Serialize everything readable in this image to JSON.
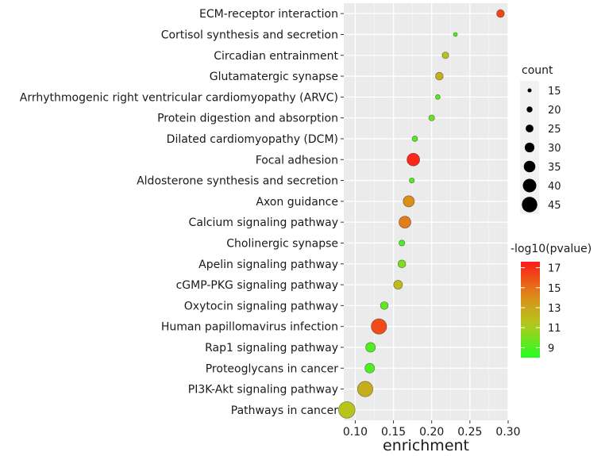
{
  "chart_data": {
    "type": "scatter",
    "xlabel": "enrichment",
    "ylabel": "",
    "xlim": [
      0.085,
      0.3
    ],
    "xticks": [
      0.1,
      0.15,
      0.2,
      0.25,
      0.3
    ],
    "xtick_labels": [
      "0.10",
      "0.15",
      "0.20",
      "0.25",
      "0.30"
    ],
    "grid": true,
    "legend_placement": "right",
    "points": [
      {
        "term": "ECM-receptor interaction",
        "enrichment": 0.29,
        "count": 25,
        "neglog10p": 16.3
      },
      {
        "term": "Cortisol synthesis and secretion",
        "enrichment": 0.231,
        "count": 15,
        "neglog10p": 9.0
      },
      {
        "term": "Circadian entrainment",
        "enrichment": 0.218,
        "count": 22,
        "neglog10p": 11.8
      },
      {
        "term": "Glutamatergic synapse",
        "enrichment": 0.21,
        "count": 25,
        "neglog10p": 12.5
      },
      {
        "term": "Arrhythmogenic right ventricular cardiomyopathy (ARVC)",
        "enrichment": 0.208,
        "count": 17,
        "neglog10p": 9.2
      },
      {
        "term": "Protein digestion and absorption",
        "enrichment": 0.2,
        "count": 20,
        "neglog10p": 9.6
      },
      {
        "term": "Dilated cardiomyopathy (DCM)",
        "enrichment": 0.178,
        "count": 19,
        "neglog10p": 9.1
      },
      {
        "term": "Focal adhesion",
        "enrichment": 0.176,
        "count": 38,
        "neglog10p": 17.2
      },
      {
        "term": "Aldosterone synthesis and secretion",
        "enrichment": 0.174,
        "count": 18,
        "neglog10p": 9.0
      },
      {
        "term": "Axon guidance",
        "enrichment": 0.17,
        "count": 34,
        "neglog10p": 14.0
      },
      {
        "term": "Calcium signaling pathway",
        "enrichment": 0.165,
        "count": 36,
        "neglog10p": 14.6
      },
      {
        "term": "Cholinergic synapse",
        "enrichment": 0.161,
        "count": 20,
        "neglog10p": 9.0
      },
      {
        "term": "Apelin signaling pathway",
        "enrichment": 0.161,
        "count": 25,
        "neglog10p": 10.1
      },
      {
        "term": "cGMP-PKG signaling pathway",
        "enrichment": 0.156,
        "count": 28,
        "neglog10p": 12.0
      },
      {
        "term": "Oxytocin signaling pathway",
        "enrichment": 0.138,
        "count": 25,
        "neglog10p": 9.4
      },
      {
        "term": "Human papillomavirus infection",
        "enrichment": 0.131,
        "count": 45,
        "neglog10p": 16.1
      },
      {
        "term": "Rap1 signaling pathway",
        "enrichment": 0.12,
        "count": 30,
        "neglog10p": 9.1
      },
      {
        "term": "Proteoglycans in cancer",
        "enrichment": 0.119,
        "count": 30,
        "neglog10p": 9.0
      },
      {
        "term": "PI3K-Akt signaling pathway",
        "enrichment": 0.113,
        "count": 45,
        "neglog10p": 12.6
      },
      {
        "term": "Pathways in cancer",
        "enrichment": 0.089,
        "count": 48,
        "neglog10p": 11.6
      }
    ],
    "size_legend": {
      "title": "count",
      "values": [
        15,
        20,
        25,
        30,
        35,
        40,
        45
      ],
      "labels": [
        "15",
        "20",
        "25",
        "30",
        "35",
        "40",
        "45"
      ]
    },
    "color_legend": {
      "title": "-log10(pvalue)",
      "range": [
        8.0,
        17.6
      ],
      "ticks": [
        9,
        11,
        13,
        15,
        17
      ],
      "tick_labels": [
        "9",
        "11",
        "13",
        "15",
        "17"
      ],
      "low_color": "#22ff22",
      "high_color": "#ff1a1a"
    }
  }
}
